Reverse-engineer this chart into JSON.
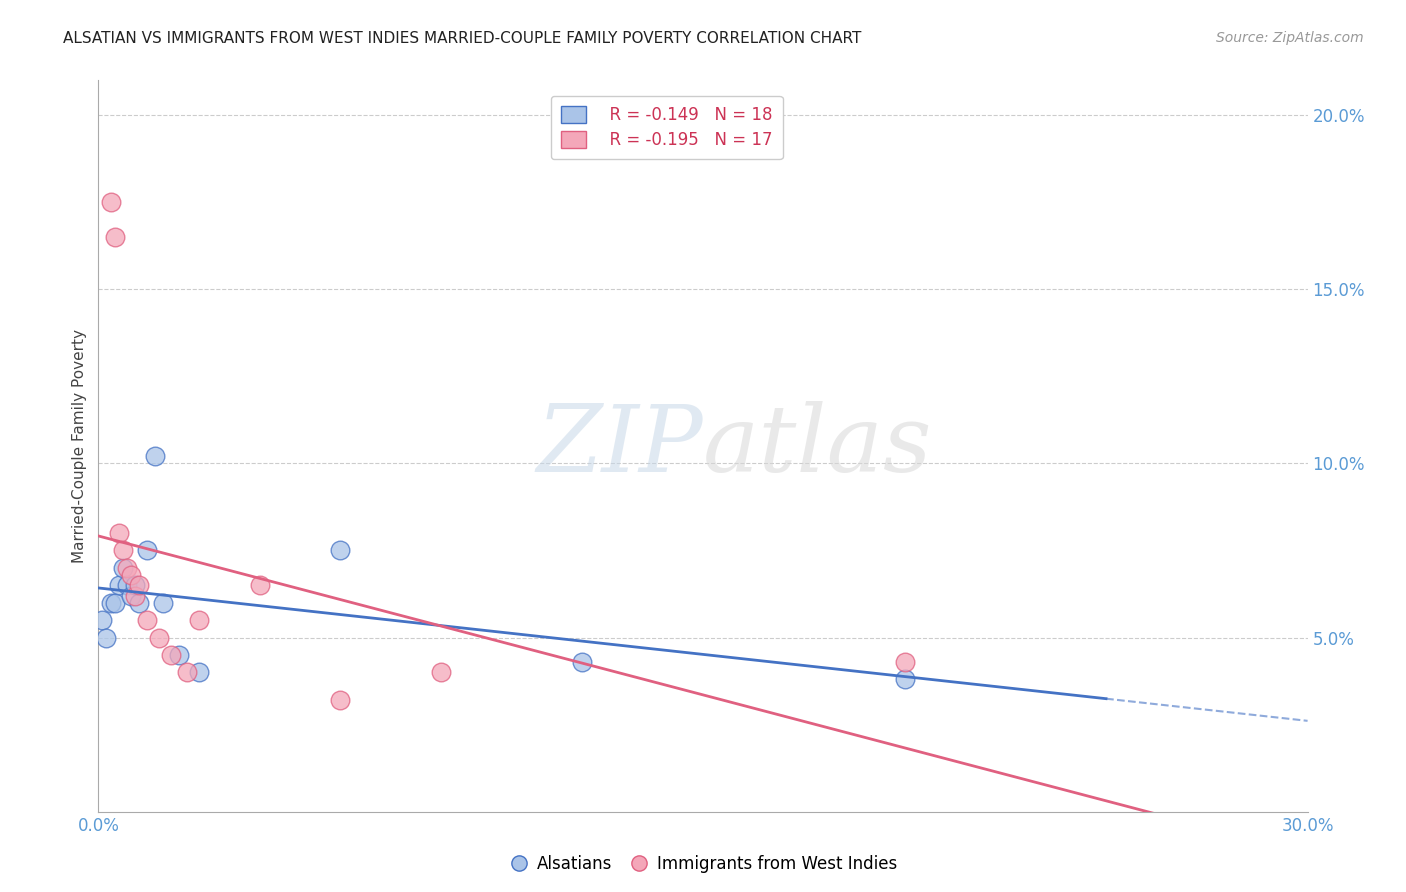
{
  "title": "ALSATIAN VS IMMIGRANTS FROM WEST INDIES MARRIED-COUPLE FAMILY POVERTY CORRELATION CHART",
  "source": "Source: ZipAtlas.com",
  "ylabel": "Married-Couple Family Poverty",
  "xlim": [
    0,
    0.3
  ],
  "ylim": [
    0,
    0.21
  ],
  "grid_color": "#cccccc",
  "background_color": "#ffffff",
  "alsatians_color": "#aac4e8",
  "west_indies_color": "#f4a7b9",
  "alsatians_line_color": "#4472c4",
  "west_indies_line_color": "#e06080",
  "tick_color": "#5b9bd5",
  "legend_r_alsatians": "R = -0.149",
  "legend_n_alsatians": "N = 18",
  "legend_r_west_indies": "R = -0.195",
  "legend_n_west_indies": "N = 17",
  "watermark_zip": "ZIP",
  "watermark_atlas": "atlas",
  "alsatians_x": [
    0.001,
    0.002,
    0.003,
    0.004,
    0.005,
    0.006,
    0.007,
    0.008,
    0.009,
    0.01,
    0.012,
    0.014,
    0.016,
    0.02,
    0.025,
    0.06,
    0.12,
    0.2
  ],
  "alsatians_y": [
    0.055,
    0.05,
    0.06,
    0.06,
    0.065,
    0.07,
    0.065,
    0.062,
    0.065,
    0.06,
    0.075,
    0.102,
    0.06,
    0.045,
    0.04,
    0.075,
    0.043,
    0.038
  ],
  "west_indies_x": [
    0.003,
    0.004,
    0.005,
    0.006,
    0.007,
    0.008,
    0.009,
    0.01,
    0.012,
    0.015,
    0.018,
    0.022,
    0.025,
    0.04,
    0.06,
    0.085,
    0.2
  ],
  "west_indies_y": [
    0.175,
    0.165,
    0.08,
    0.075,
    0.07,
    0.068,
    0.062,
    0.065,
    0.055,
    0.05,
    0.045,
    0.04,
    0.055,
    0.065,
    0.032,
    0.04,
    0.043
  ],
  "blue_line_solid_end": 0.25,
  "als_label": "Alsatians",
  "wi_label": "Immigrants from West Indies"
}
